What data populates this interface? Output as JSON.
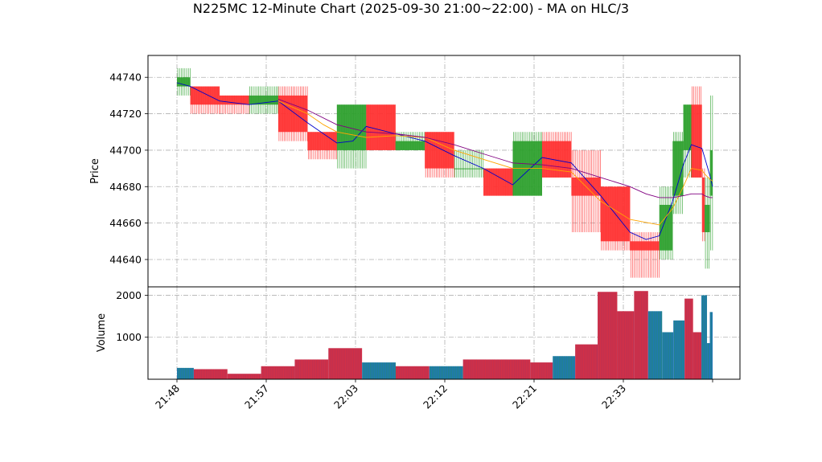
{
  "title": "N225MC 12-Minute Chart (2025-09-30 21:00~22:00) - MA on HLC/3",
  "colors": {
    "up": "#2ca02c",
    "down": "#ff3030",
    "volume_up": "#1f77b4",
    "volume_down": "#c03050",
    "ma_short": "#0000cc",
    "ma_mid": "#ffa500",
    "ma_long": "#800080",
    "grid": "#b0b0b0"
  },
  "chart_data": [
    {
      "type": "bar",
      "subtype": "ohlc",
      "ylabel": "Price",
      "ylim": [
        44625,
        44752
      ],
      "yticks": [
        44640,
        44660,
        44680,
        44700,
        44720,
        44740
      ],
      "xticks": [
        "21:48",
        "21:57",
        "22:03",
        "22:12",
        "22:21",
        "22:33"
      ],
      "grid": true,
      "bars": [
        {
          "x0": 0,
          "x1": 5,
          "open": 44735,
          "close": 44740,
          "high": 44745,
          "low": 44730
        },
        {
          "x0": 5,
          "x1": 16,
          "open": 44735,
          "close": 44725,
          "high": 44735,
          "low": 44720
        },
        {
          "x0": 16,
          "x1": 27,
          "open": 44730,
          "close": 44725,
          "high": 44730,
          "low": 44720
        },
        {
          "x0": 27,
          "x1": 38,
          "open": 44725,
          "close": 44730,
          "high": 44735,
          "low": 44720
        },
        {
          "x0": 38,
          "x1": 49,
          "open": 44730,
          "close": 44710,
          "high": 44735,
          "low": 44705
        },
        {
          "x0": 49,
          "x1": 60,
          "open": 44710,
          "close": 44700,
          "high": 44710,
          "low": 44695
        },
        {
          "x0": 60,
          "x1": 71,
          "open": 44700,
          "close": 44725,
          "high": 44725,
          "low": 44690
        },
        {
          "x0": 71,
          "x1": 82,
          "open": 44725,
          "close": 44700,
          "high": 44725,
          "low": 44700
        },
        {
          "x0": 82,
          "x1": 93,
          "open": 44700,
          "close": 44705,
          "high": 44710,
          "low": 44700
        },
        {
          "x0": 93,
          "x1": 104,
          "open": 44710,
          "close": 44690,
          "high": 44710,
          "low": 44685
        },
        {
          "x0": 104,
          "x1": 115,
          "open": 44690,
          "close": 44690,
          "high": 44700,
          "low": 44685
        },
        {
          "x0": 115,
          "x1": 126,
          "open": 44690,
          "close": 44675,
          "high": 44690,
          "low": 44675
        },
        {
          "x0": 126,
          "x1": 137,
          "open": 44675,
          "close": 44705,
          "high": 44710,
          "low": 44675
        },
        {
          "x0": 137,
          "x1": 148,
          "open": 44705,
          "close": 44685,
          "high": 44710,
          "low": 44685
        },
        {
          "x0": 148,
          "x1": 159,
          "open": 44685,
          "close": 44675,
          "high": 44700,
          "low": 44655
        },
        {
          "x0": 159,
          "x1": 170,
          "open": 44680,
          "close": 44650,
          "high": 44680,
          "low": 44645
        },
        {
          "x0": 170,
          "x1": 181,
          "open": 44650,
          "close": 44645,
          "high": 44655,
          "low": 44630
        },
        {
          "x0": 181,
          "x1": 186,
          "open": 44645,
          "close": 44670,
          "high": 44680,
          "low": 44640
        },
        {
          "x0": 186,
          "x1": 190,
          "open": 44675,
          "close": 44705,
          "high": 44710,
          "low": 44665
        },
        {
          "x0": 190,
          "x1": 193,
          "open": 44700,
          "close": 44725,
          "high": 44725,
          "low": 44685
        },
        {
          "x0": 193,
          "x1": 197,
          "open": 44725,
          "close": 44685,
          "high": 44735,
          "low": 44685
        },
        {
          "x0": 197,
          "x1": 198,
          "open": 44685,
          "close": 44655,
          "high": 44690,
          "low": 44650
        },
        {
          "x0": 198,
          "x1": 200,
          "open": 44655,
          "close": 44670,
          "high": 44685,
          "low": 44635
        },
        {
          "x0": 200,
          "x1": 201,
          "open": 44675,
          "close": 44700,
          "high": 44730,
          "low": 44645
        }
      ],
      "ma": [
        {
          "color_key": "ma_short",
          "x": [
            0,
            5,
            16,
            27,
            38,
            49,
            55,
            60,
            66,
            71,
            82,
            93,
            104,
            115,
            126,
            137,
            148,
            159,
            170,
            176,
            181,
            186,
            190,
            193,
            197,
            198,
            200,
            201
          ],
          "y": [
            44737,
            44735,
            44727,
            44725,
            44727,
            44715,
            44709,
            44704,
            44705,
            44713,
            44709,
            44705,
            44697,
            44690,
            44681,
            44696,
            44693,
            44675,
            44655,
            44651,
            44653,
            44672,
            44692,
            44703,
            44701,
            44696,
            44686,
            44680
          ]
        },
        {
          "color_key": "ma_mid",
          "x": [
            38,
            49,
            55,
            60,
            71,
            82,
            93,
            104,
            115,
            126,
            137,
            148,
            159,
            170,
            181,
            186,
            190,
            193,
            197,
            198,
            200,
            201
          ],
          "y": [
            44727,
            44720,
            44714,
            44710,
            44707,
            44708,
            44707,
            44700,
            44695,
            44690,
            44690,
            44688,
            44672,
            44662,
            44659,
            44668,
            44680,
            44690,
            44689,
            44687,
            44684,
            44683
          ]
        },
        {
          "color_key": "ma_long",
          "x": [
            38,
            49,
            60,
            71,
            82,
            93,
            104,
            115,
            126,
            137,
            148,
            159,
            170,
            176,
            181,
            186,
            190,
            193,
            197,
            198,
            200,
            201
          ],
          "y": [
            44728,
            44722,
            44714,
            44710,
            44709,
            44707,
            44703,
            44698,
            44693,
            44692,
            44690,
            44685,
            44680,
            44676,
            44674,
            44674,
            44675,
            44676,
            44676,
            44675,
            44674,
            44674
          ]
        }
      ]
    },
    {
      "type": "bar",
      "ylabel": "Volume",
      "ylim": [
        0,
        2200
      ],
      "yticks": [
        1000,
        2000
      ],
      "xticks": [
        "21:48",
        "21:57",
        "22:03",
        "22:12",
        "22:21",
        "22:33"
      ],
      "grid": true,
      "bars": [
        {
          "x0": 0,
          "x1": 6,
          "value": 270,
          "up": true
        },
        {
          "x0": 6,
          "x1": 18,
          "value": 240,
          "up": false
        },
        {
          "x0": 18,
          "x1": 30,
          "value": 130,
          "up": false
        },
        {
          "x0": 30,
          "x1": 42,
          "value": 310,
          "up": false
        },
        {
          "x0": 42,
          "x1": 54,
          "value": 470,
          "up": false
        },
        {
          "x0": 54,
          "x1": 66,
          "value": 740,
          "up": false
        },
        {
          "x0": 66,
          "x1": 78,
          "value": 400,
          "up": true
        },
        {
          "x0": 78,
          "x1": 90,
          "value": 310,
          "up": false
        },
        {
          "x0": 90,
          "x1": 102,
          "value": 310,
          "up": true
        },
        {
          "x0": 102,
          "x1": 114,
          "value": 470,
          "up": false
        },
        {
          "x0": 114,
          "x1": 126,
          "value": 470,
          "up": false
        },
        {
          "x0": 126,
          "x1": 134,
          "value": 400,
          "up": false
        },
        {
          "x0": 134,
          "x1": 142,
          "value": 550,
          "up": true
        },
        {
          "x0": 142,
          "x1": 150,
          "value": 830,
          "up": false
        },
        {
          "x0": 150,
          "x1": 157,
          "value": 2080,
          "up": false
        },
        {
          "x0": 157,
          "x1": 163,
          "value": 1620,
          "up": false
        },
        {
          "x0": 163,
          "x1": 168,
          "value": 2100,
          "up": false
        },
        {
          "x0": 168,
          "x1": 173,
          "value": 1620,
          "up": true
        },
        {
          "x0": 173,
          "x1": 177,
          "value": 1120,
          "up": true
        },
        {
          "x0": 177,
          "x1": 181,
          "value": 1400,
          "up": true
        },
        {
          "x0": 181,
          "x1": 184,
          "value": 1920,
          "up": false
        },
        {
          "x0": 184,
          "x1": 187,
          "value": 1120,
          "up": false
        },
        {
          "x0": 187,
          "x1": 189,
          "value": 2000,
          "up": true
        },
        {
          "x0": 189,
          "x1": 190,
          "value": 860,
          "up": true
        },
        {
          "x0": 190,
          "x1": 191,
          "value": 1600,
          "up": true
        }
      ]
    }
  ]
}
